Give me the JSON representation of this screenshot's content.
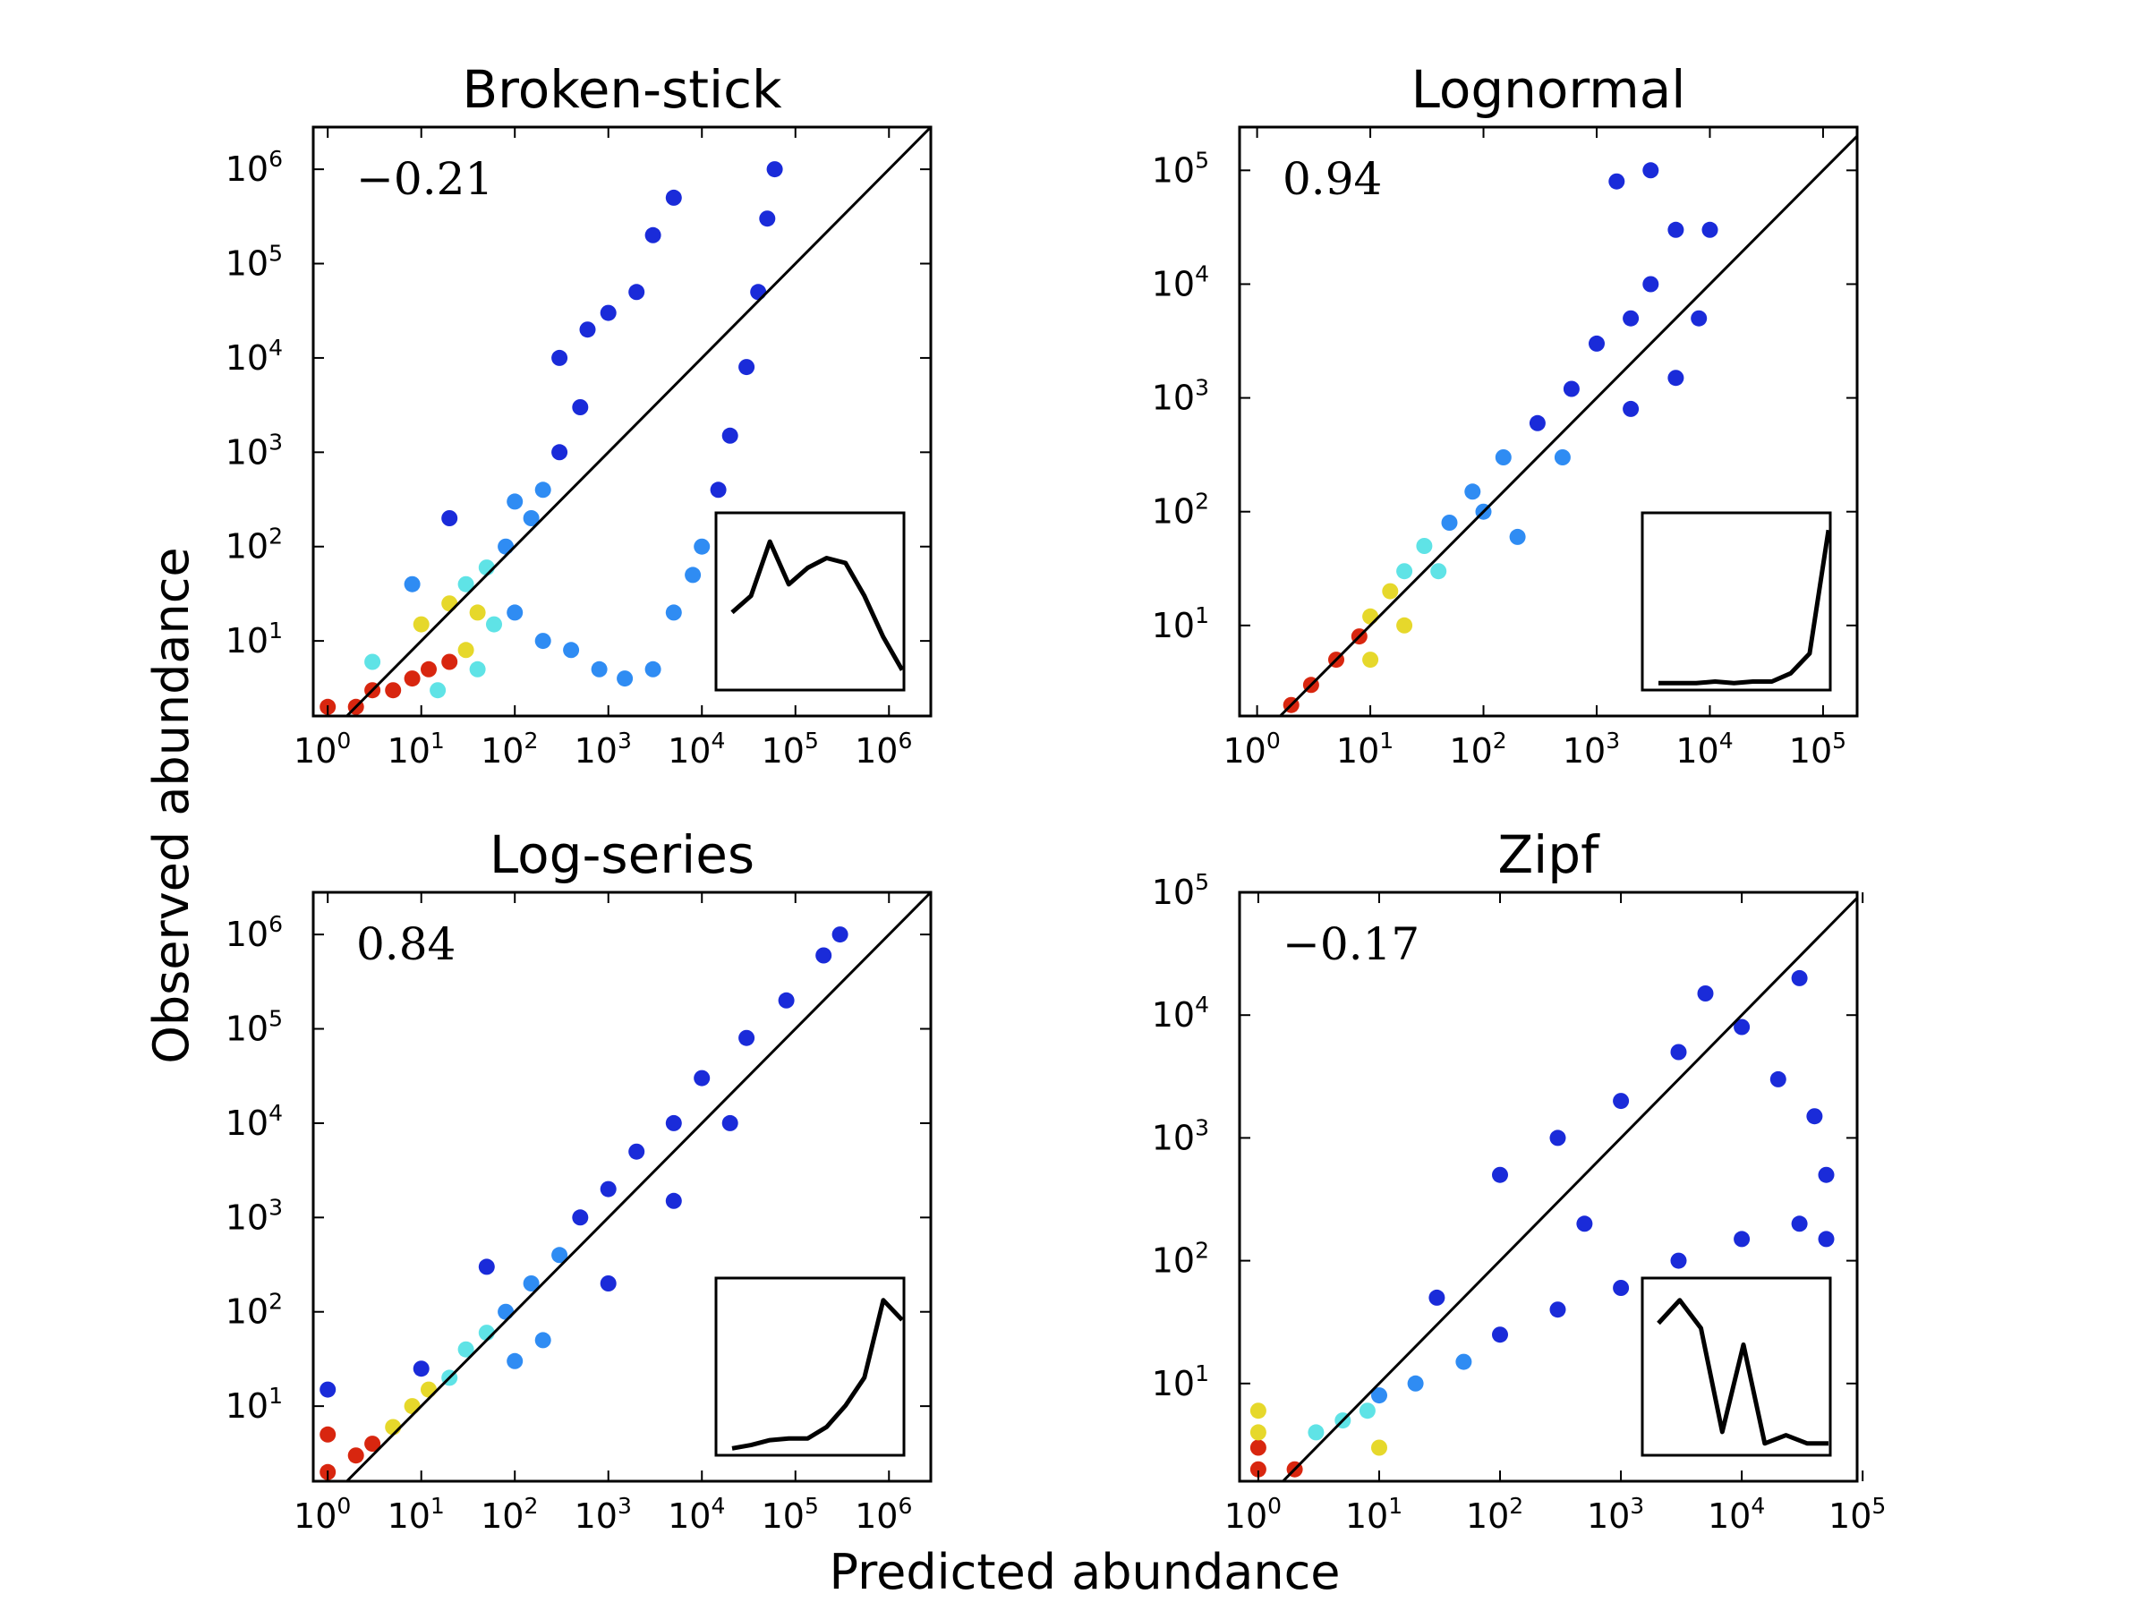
{
  "figure": {
    "xlabel": "Predicted abundance",
    "ylabel": "Observed abundance"
  },
  "chart_data": [
    {
      "type": "scatter",
      "title": "Broken-stick",
      "annotation": "−0.21",
      "scale": "log",
      "xlim": [
        0.7,
        2800000
      ],
      "ylim": [
        1.6,
        2800000
      ],
      "x_ticks": [
        {
          "base": "10",
          "exp": "0",
          "value": 1
        },
        {
          "base": "10",
          "exp": "1",
          "value": 10
        },
        {
          "base": "10",
          "exp": "2",
          "value": 100
        },
        {
          "base": "10",
          "exp": "3",
          "value": 1000
        },
        {
          "base": "10",
          "exp": "4",
          "value": 10000
        },
        {
          "base": "10",
          "exp": "5",
          "value": 100000
        },
        {
          "base": "10",
          "exp": "6",
          "value": 1000000
        }
      ],
      "y_ticks": [
        {
          "base": "10",
          "exp": "1",
          "value": 10
        },
        {
          "base": "10",
          "exp": "2",
          "value": 100
        },
        {
          "base": "10",
          "exp": "3",
          "value": 1000
        },
        {
          "base": "10",
          "exp": "4",
          "value": 10000
        },
        {
          "base": "10",
          "exp": "5",
          "value": 100000
        },
        {
          "base": "10",
          "exp": "6",
          "value": 1000000
        }
      ],
      "reference_line": "1:1",
      "points": [
        [
          1,
          2,
          4
        ],
        [
          2,
          2,
          4
        ],
        [
          3,
          3,
          4
        ],
        [
          5,
          3,
          4
        ],
        [
          8,
          4,
          4
        ],
        [
          12,
          5,
          4
        ],
        [
          20,
          6,
          4
        ],
        [
          30,
          8,
          3
        ],
        [
          10,
          15,
          3
        ],
        [
          20,
          25,
          3
        ],
        [
          30,
          40,
          2
        ],
        [
          50,
          60,
          2
        ],
        [
          40,
          20,
          3
        ],
        [
          60,
          15,
          2
        ],
        [
          100,
          20,
          1
        ],
        [
          80,
          100,
          1
        ],
        [
          150,
          200,
          1
        ],
        [
          200,
          400,
          1
        ],
        [
          100,
          300,
          1
        ],
        [
          300,
          1000,
          0
        ],
        [
          500,
          3000,
          0
        ],
        [
          300,
          10000,
          0
        ],
        [
          600,
          20000,
          0
        ],
        [
          1000,
          30000,
          0
        ],
        [
          2000,
          50000,
          0
        ],
        [
          3000,
          200000,
          0
        ],
        [
          5000,
          500000,
          0
        ],
        [
          200,
          10,
          1
        ],
        [
          400,
          8,
          1
        ],
        [
          800,
          5,
          1
        ],
        [
          1500,
          4,
          1
        ],
        [
          3000,
          5,
          1
        ],
        [
          5000,
          20,
          1
        ],
        [
          8000,
          50,
          1
        ],
        [
          10000,
          100,
          1
        ],
        [
          15000,
          400,
          0
        ],
        [
          20000,
          1500,
          0
        ],
        [
          30000,
          8000,
          0
        ],
        [
          40000,
          50000,
          0
        ],
        [
          50000,
          300000,
          0
        ],
        [
          60000,
          1000000,
          0
        ],
        [
          20,
          200,
          0
        ],
        [
          8,
          40,
          1
        ],
        [
          3,
          6,
          2
        ],
        [
          15,
          3,
          2
        ],
        [
          40,
          5,
          2
        ]
      ],
      "inset": {
        "y": [
          0.45,
          0.55,
          0.88,
          0.62,
          0.72,
          0.78,
          0.75,
          0.55,
          0.3,
          0.1
        ]
      }
    },
    {
      "type": "scatter",
      "title": "Lognormal",
      "annotation": "0.94",
      "scale": "log",
      "xlim": [
        0.7,
        200000
      ],
      "ylim": [
        1.6,
        240000
      ],
      "x_ticks": [
        {
          "base": "10",
          "exp": "0",
          "value": 1
        },
        {
          "base": "10",
          "exp": "1",
          "value": 10
        },
        {
          "base": "10",
          "exp": "2",
          "value": 100
        },
        {
          "base": "10",
          "exp": "3",
          "value": 1000
        },
        {
          "base": "10",
          "exp": "4",
          "value": 10000
        },
        {
          "base": "10",
          "exp": "5",
          "value": 100000
        }
      ],
      "y_ticks": [
        {
          "base": "10",
          "exp": "1",
          "value": 10
        },
        {
          "base": "10",
          "exp": "2",
          "value": 100
        },
        {
          "base": "10",
          "exp": "3",
          "value": 1000
        },
        {
          "base": "10",
          "exp": "4",
          "value": 10000
        },
        {
          "base": "10",
          "exp": "5",
          "value": 100000
        }
      ],
      "reference_line": "1:1",
      "points": [
        [
          2,
          2,
          4
        ],
        [
          3,
          3,
          4
        ],
        [
          5,
          5,
          4
        ],
        [
          8,
          8,
          4
        ],
        [
          10,
          12,
          3
        ],
        [
          15,
          20,
          3
        ],
        [
          20,
          30,
          2
        ],
        [
          30,
          50,
          2
        ],
        [
          50,
          80,
          1
        ],
        [
          80,
          150,
          1
        ],
        [
          150,
          300,
          1
        ],
        [
          300,
          600,
          0
        ],
        [
          600,
          1200,
          0
        ],
        [
          1000,
          3000,
          0
        ],
        [
          2000,
          5000,
          0
        ],
        [
          3000,
          10000,
          0
        ],
        [
          5000,
          30000,
          0
        ],
        [
          1500,
          80000,
          0
        ],
        [
          3000,
          100000,
          0
        ],
        [
          10000,
          30000,
          0
        ],
        [
          8000,
          5000,
          0
        ],
        [
          5000,
          1500,
          0
        ],
        [
          2000,
          800,
          0
        ],
        [
          500,
          300,
          1
        ],
        [
          200,
          60,
          1
        ],
        [
          100,
          100,
          1
        ],
        [
          40,
          30,
          2
        ],
        [
          10,
          5,
          3
        ],
        [
          20,
          10,
          3
        ]
      ],
      "inset": {
        "y": [
          0.02,
          0.02,
          0.02,
          0.03,
          0.02,
          0.03,
          0.03,
          0.08,
          0.2,
          0.95
        ]
      }
    },
    {
      "type": "scatter",
      "title": "Log-series",
      "annotation": "0.84",
      "scale": "log",
      "xlim": [
        0.7,
        2800000
      ],
      "ylim": [
        1.6,
        2800000
      ],
      "x_ticks": [
        {
          "base": "10",
          "exp": "0",
          "value": 1
        },
        {
          "base": "10",
          "exp": "1",
          "value": 10
        },
        {
          "base": "10",
          "exp": "2",
          "value": 100
        },
        {
          "base": "10",
          "exp": "3",
          "value": 1000
        },
        {
          "base": "10",
          "exp": "4",
          "value": 10000
        },
        {
          "base": "10",
          "exp": "5",
          "value": 100000
        },
        {
          "base": "10",
          "exp": "6",
          "value": 1000000
        }
      ],
      "y_ticks": [
        {
          "base": "10",
          "exp": "1",
          "value": 10
        },
        {
          "base": "10",
          "exp": "2",
          "value": 100
        },
        {
          "base": "10",
          "exp": "3",
          "value": 1000
        },
        {
          "base": "10",
          "exp": "4",
          "value": 10000
        },
        {
          "base": "10",
          "exp": "5",
          "value": 100000
        },
        {
          "base": "10",
          "exp": "6",
          "value": 1000000
        }
      ],
      "reference_line": "1:1",
      "points": [
        [
          1,
          2,
          4
        ],
        [
          1,
          5,
          4
        ],
        [
          2,
          3,
          4
        ],
        [
          3,
          4,
          4
        ],
        [
          5,
          6,
          3
        ],
        [
          8,
          10,
          3
        ],
        [
          12,
          15,
          3
        ],
        [
          20,
          20,
          2
        ],
        [
          30,
          40,
          2
        ],
        [
          50,
          60,
          2
        ],
        [
          80,
          100,
          1
        ],
        [
          150,
          200,
          1
        ],
        [
          300,
          400,
          1
        ],
        [
          500,
          1000,
          0
        ],
        [
          1000,
          2000,
          0
        ],
        [
          2000,
          5000,
          0
        ],
        [
          5000,
          10000,
          0
        ],
        [
          10000,
          30000,
          0
        ],
        [
          30000,
          80000,
          0
        ],
        [
          80000,
          200000,
          0
        ],
        [
          200000,
          600000,
          0
        ],
        [
          300000,
          1000000,
          0
        ],
        [
          100,
          30,
          1
        ],
        [
          200,
          50,
          1
        ],
        [
          1000,
          200,
          0
        ],
        [
          5000,
          1500,
          0
        ],
        [
          20000,
          10000,
          0
        ],
        [
          1,
          15,
          0
        ],
        [
          10,
          25,
          0
        ],
        [
          50,
          300,
          0
        ]
      ],
      "inset": {
        "y": [
          0.02,
          0.04,
          0.07,
          0.08,
          0.08,
          0.15,
          0.28,
          0.45,
          0.92,
          0.8
        ]
      }
    },
    {
      "type": "scatter",
      "title": "Zipf",
      "annotation": "−0.17",
      "scale": "log",
      "xlim": [
        0.7,
        90000
      ],
      "ylim": [
        1.6,
        100000
      ],
      "x_ticks": [
        {
          "base": "10",
          "exp": "0",
          "value": 1
        },
        {
          "base": "10",
          "exp": "1",
          "value": 10
        },
        {
          "base": "10",
          "exp": "2",
          "value": 100
        },
        {
          "base": "10",
          "exp": "3",
          "value": 1000
        },
        {
          "base": "10",
          "exp": "4",
          "value": 10000
        },
        {
          "base": "10",
          "exp": "5",
          "value": 100000
        }
      ],
      "y_ticks": [
        {
          "base": "10",
          "exp": "1",
          "value": 10
        },
        {
          "base": "10",
          "exp": "2",
          "value": 100
        },
        {
          "base": "10",
          "exp": "3",
          "value": 1000
        },
        {
          "base": "10",
          "exp": "4",
          "value": 10000
        },
        {
          "base": "10",
          "exp": "5",
          "value": 100000
        }
      ],
      "reference_line": "1:1",
      "points": [
        [
          1,
          2,
          4
        ],
        [
          1,
          3,
          4
        ],
        [
          1,
          4,
          3
        ],
        [
          1,
          6,
          3
        ],
        [
          2,
          2,
          4
        ],
        [
          3,
          4,
          2
        ],
        [
          5,
          5,
          2
        ],
        [
          8,
          6,
          2
        ],
        [
          10,
          8,
          1
        ],
        [
          20,
          10,
          1
        ],
        [
          50,
          15,
          1
        ],
        [
          100,
          25,
          0
        ],
        [
          300,
          40,
          0
        ],
        [
          1000,
          60,
          0
        ],
        [
          3000,
          100,
          0
        ],
        [
          10000,
          150,
          0
        ],
        [
          30000,
          200,
          0
        ],
        [
          50000,
          150,
          0
        ],
        [
          100,
          500,
          0
        ],
        [
          300,
          1000,
          0
        ],
        [
          1000,
          2000,
          0
        ],
        [
          3000,
          5000,
          0
        ],
        [
          10000,
          8000,
          0
        ],
        [
          20000,
          3000,
          0
        ],
        [
          40000,
          1500,
          0
        ],
        [
          5000,
          15000,
          0
        ],
        [
          30000,
          20000,
          0
        ],
        [
          50000,
          500,
          0
        ],
        [
          10,
          3,
          3
        ],
        [
          30,
          50,
          0
        ],
        [
          500,
          200,
          0
        ]
      ],
      "inset": {
        "y": [
          0.78,
          0.92,
          0.75,
          0.12,
          0.65,
          0.05,
          0.1,
          0.05,
          0.05
        ]
      }
    }
  ]
}
